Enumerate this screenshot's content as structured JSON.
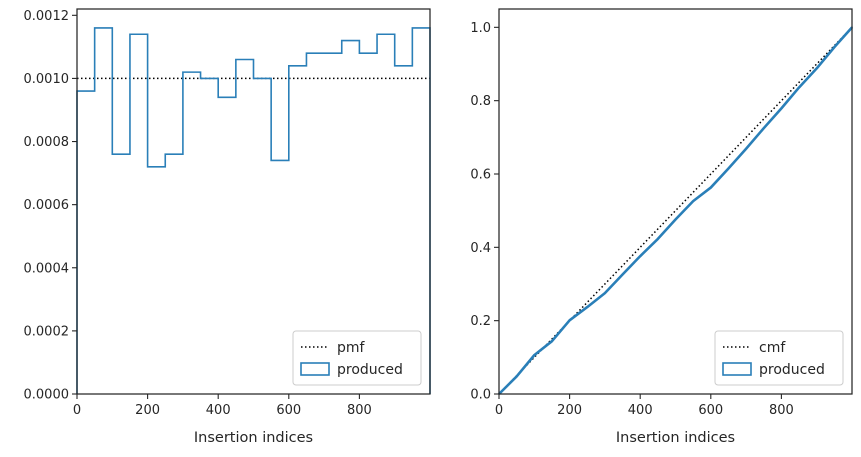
{
  "chart_data": [
    {
      "type": "histogram-step",
      "xlabel": "Insertion indices",
      "xlim": [
        0,
        1000
      ],
      "ylim": [
        0,
        0.00122
      ],
      "xticks": [
        0,
        200,
        400,
        600,
        800
      ],
      "yticks": [
        0.0,
        0.0002,
        0.0004,
        0.0006,
        0.0008,
        0.001
      ],
      "ytick_labels": [
        "0.0000",
        "0.0002",
        "0.0004",
        "0.0006",
        "0.0008",
        "0.0010",
        "0.0012"
      ],
      "ytick_values": [
        0.0,
        0.0002,
        0.0004,
        0.0006,
        0.0008,
        0.001,
        0.0012
      ],
      "xtick_labels": [
        "0",
        "200",
        "400",
        "600",
        "800"
      ],
      "legend": {
        "placement": "lower-right",
        "entries": [
          "pmf",
          "produced"
        ]
      },
      "reference_line": {
        "name": "pmf",
        "style": "dotted",
        "color": "#000000",
        "y": 0.001
      },
      "histogram": {
        "name": "produced",
        "color": "#2a7fb8",
        "bin_edges": [
          0,
          50,
          100,
          150,
          200,
          250,
          300,
          350,
          400,
          450,
          500,
          550,
          600,
          650,
          700,
          750,
          800,
          850,
          900,
          950,
          1000
        ],
        "values": [
          0.00096,
          0.00116,
          0.00076,
          0.00114,
          0.00072,
          0.00076,
          0.00102,
          0.001,
          0.00094,
          0.00106,
          0.001,
          0.00074,
          0.00104,
          0.00108,
          0.00108,
          0.00112,
          0.00108,
          0.00114,
          0.00104,
          0.00116
        ]
      }
    },
    {
      "type": "line",
      "xlabel": "Insertion indices",
      "xlim": [
        0,
        1000
      ],
      "ylim": [
        0,
        1.05
      ],
      "xticks": [
        0,
        200,
        400,
        600,
        800
      ],
      "xtick_labels": [
        "0",
        "200",
        "400",
        "600",
        "800"
      ],
      "ytick_values": [
        0.0,
        0.2,
        0.4,
        0.6,
        0.8,
        1.0
      ],
      "ytick_labels": [
        "0.0",
        "0.2",
        "0.4",
        "0.6",
        "0.8",
        "1.0"
      ],
      "legend": {
        "placement": "lower-right",
        "entries": [
          "cmf",
          "produced"
        ]
      },
      "reference_line": {
        "name": "cmf",
        "style": "dotted",
        "color": "#000000",
        "x": [
          0,
          1000
        ],
        "y": [
          0,
          1
        ]
      },
      "series": [
        {
          "name": "produced",
          "color": "#2a7fb8",
          "x": [
            0,
            50,
            100,
            150,
            200,
            250,
            300,
            350,
            400,
            450,
            500,
            550,
            600,
            650,
            700,
            750,
            800,
            850,
            900,
            950,
            1000
          ],
          "y": [
            0,
            0.048,
            0.106,
            0.144,
            0.201,
            0.237,
            0.275,
            0.326,
            0.376,
            0.423,
            0.476,
            0.526,
            0.563,
            0.615,
            0.669,
            0.725,
            0.779,
            0.836,
            0.888,
            0.946,
            1.0
          ]
        }
      ]
    }
  ]
}
